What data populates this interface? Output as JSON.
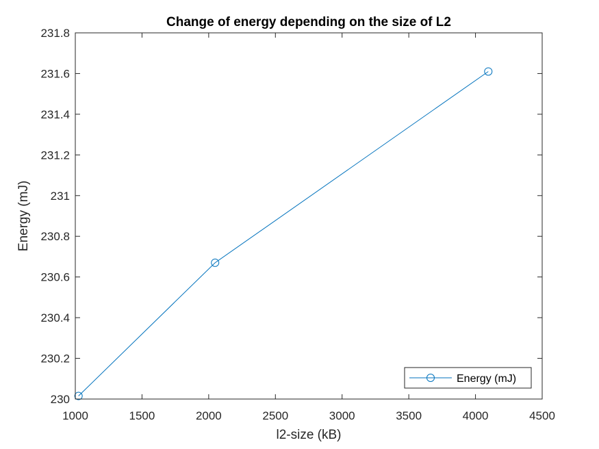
{
  "chart_data": {
    "type": "line",
    "title": "Change of energy depending on the size of L2",
    "xlabel": "l2-size (kB)",
    "ylabel": "Energy (mJ)",
    "xlim": [
      1000,
      4500
    ],
    "ylim": [
      230,
      231.8
    ],
    "xticks": [
      1000,
      1500,
      2000,
      2500,
      3000,
      3500,
      4000,
      4500
    ],
    "yticks": [
      230,
      230.2,
      230.4,
      230.6,
      230.8,
      231,
      231.2,
      231.4,
      231.6,
      231.8
    ],
    "xtick_labels": [
      "1000",
      "1500",
      "2000",
      "2500",
      "3000",
      "3500",
      "4000",
      "4500"
    ],
    "ytick_labels": [
      "230",
      "230.2",
      "230.4",
      "230.6",
      "230.8",
      "231",
      "231.2",
      "231.4",
      "231.6",
      "231.8"
    ],
    "grid": false,
    "legend_position": "bottom-right",
    "series": [
      {
        "name": "Energy (mJ)",
        "color": "#0072BD",
        "marker": "circle",
        "x": [
          1024,
          2048,
          4096
        ],
        "y": [
          230.015,
          230.67,
          231.61
        ]
      }
    ]
  }
}
